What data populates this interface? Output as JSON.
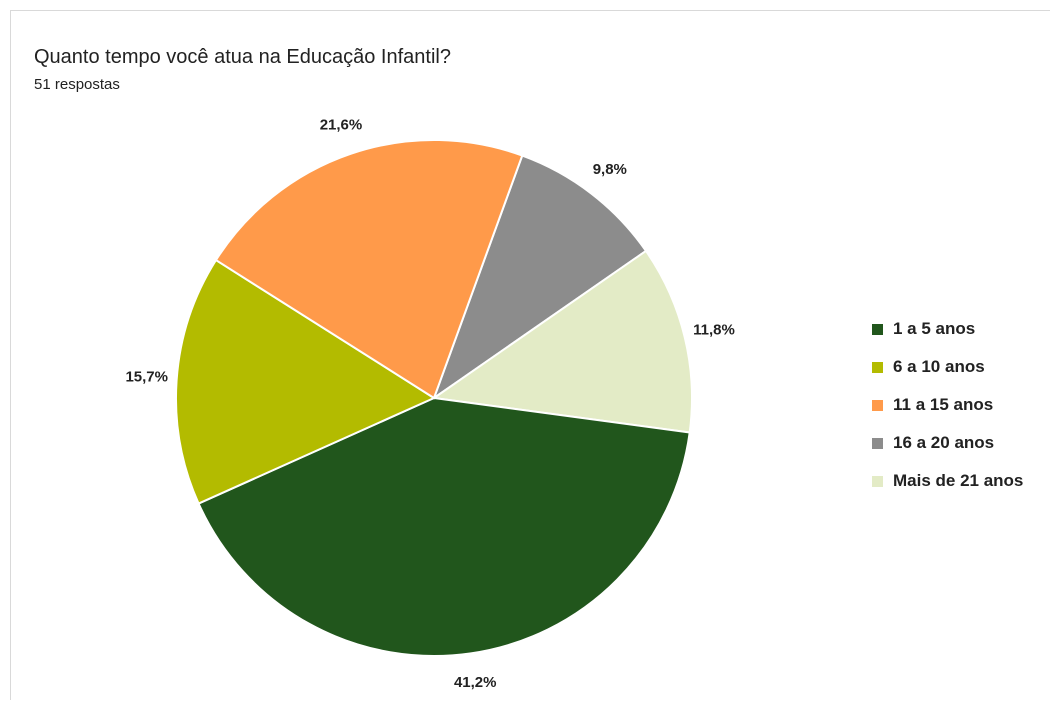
{
  "chart_data": {
    "type": "pie",
    "title": "Quanto tempo você atua na Educação Infantil?",
    "subtitle": "51 respostas",
    "categories": [
      "1 a 5 anos",
      "6 a 10 anos",
      "11 a 15 anos",
      "16 a 20 anos",
      "Mais de 21 anos"
    ],
    "values": [
      41.2,
      15.7,
      21.6,
      9.8,
      11.8
    ],
    "labels": [
      "41,2%",
      "15,7%",
      "21,6%",
      "9,8%",
      "11,8%"
    ],
    "colors": [
      "#21561c",
      "#b3bb00",
      "#ff9a4a",
      "#8c8c8c",
      "#e3ebc6"
    ],
    "legend_position": "right"
  }
}
